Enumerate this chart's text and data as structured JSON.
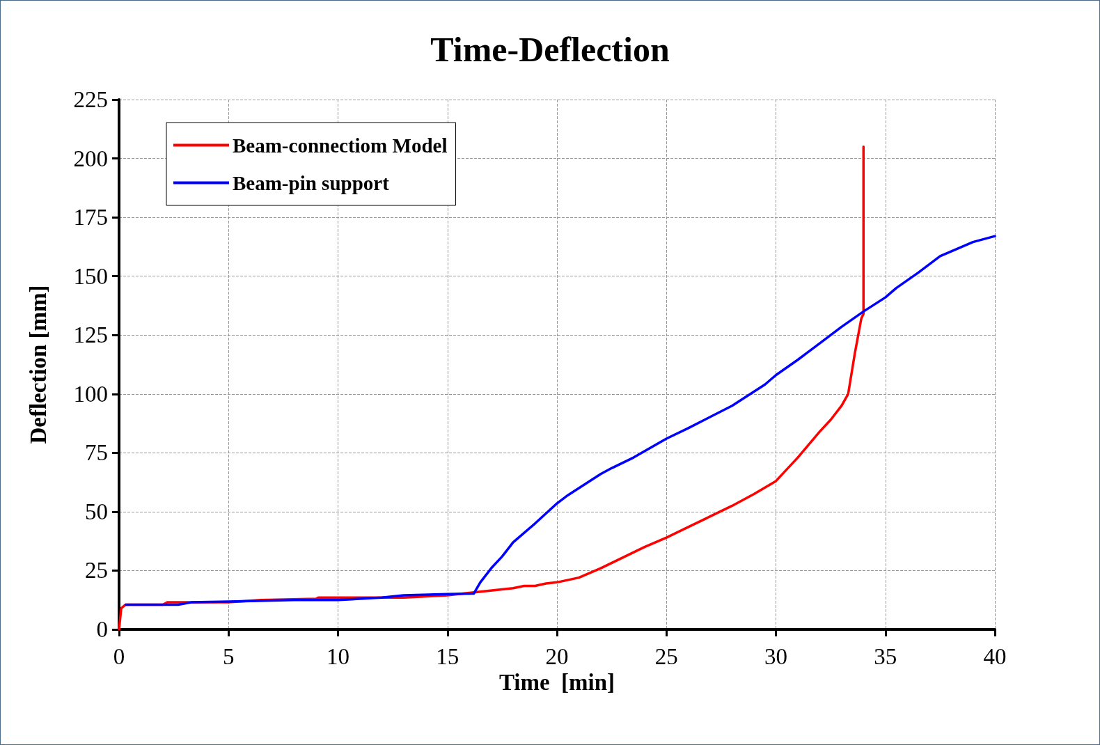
{
  "chart_data": {
    "type": "line",
    "title": "Time-Deflection",
    "xlabel": "Time  [min]",
    "ylabel": "Deflection [mm]",
    "xlim": [
      0,
      40
    ],
    "xticks": [
      0,
      5,
      10,
      15,
      20,
      25,
      30,
      35,
      40
    ],
    "ylim": [
      0,
      225
    ],
    "yticks": [
      0,
      25,
      50,
      75,
      100,
      125,
      150,
      175,
      200,
      225
    ],
    "grid": true,
    "legend": "top left",
    "marker": "none",
    "line_style": "solid",
    "series": [
      {
        "name": "Beam-connectiom Model",
        "color": "#ff0000",
        "x": [
          0,
          0.1,
          0.3,
          2,
          2.2,
          5,
          6.5,
          9,
          9.1,
          13,
          15,
          16,
          18,
          18.5,
          19,
          19.5,
          20,
          21,
          22,
          23,
          24,
          25,
          26,
          27,
          28,
          29,
          30,
          31,
          32,
          32.5,
          33,
          33.3,
          33.6,
          33.9,
          34,
          34
        ],
        "values": [
          0,
          9,
          10.5,
          10.5,
          11.5,
          11.5,
          12.5,
          13,
          13.5,
          13.5,
          14.5,
          15.5,
          17.5,
          18.5,
          18.5,
          19.5,
          20,
          22,
          26,
          30.5,
          35,
          39,
          43.5,
          48,
          52.5,
          57.5,
          63,
          73,
          84,
          89,
          95,
          100,
          117,
          132,
          134,
          205
        ]
      },
      {
        "name": "Beam-pin support",
        "color": "#0000ff",
        "x": [
          0.3,
          2.7,
          3.3,
          5,
          8,
          10,
          12,
          13,
          15,
          16.2,
          16.5,
          17,
          17.5,
          18,
          19,
          20,
          20.5,
          22,
          22.5,
          23.5,
          25,
          26,
          28,
          29.5,
          30,
          31,
          32,
          33,
          34,
          35,
          35.5,
          36.5,
          37.5,
          38.5,
          39,
          40
        ],
        "values": [
          10.5,
          10.5,
          11.5,
          11.8,
          12.5,
          12.5,
          13.5,
          14.5,
          15,
          15.2,
          20,
          26,
          31,
          37,
          45,
          53.5,
          57,
          66,
          68.5,
          73,
          81,
          85.5,
          95,
          104,
          108,
          114.5,
          121.5,
          128.5,
          135,
          141,
          145,
          151.5,
          158.5,
          162.5,
          164.5,
          167
        ]
      }
    ]
  }
}
